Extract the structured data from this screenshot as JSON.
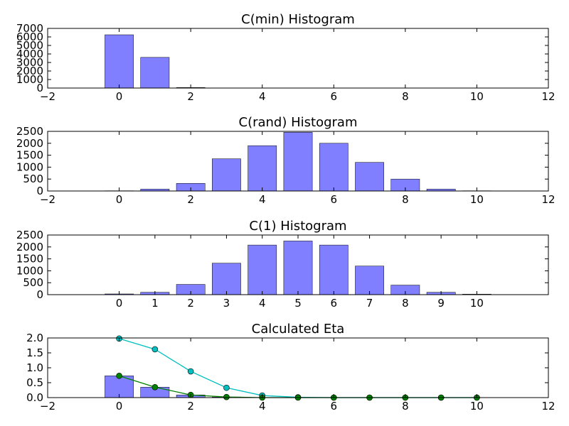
{
  "chart_data": [
    {
      "type": "bar",
      "title": "C(min) Histogram",
      "xlabel": "",
      "ylabel": "",
      "xlim": [
        -2,
        12
      ],
      "ylim": [
        0,
        7000
      ],
      "xticks": [
        "−2",
        "0",
        "2",
        "4",
        "6",
        "8",
        "10",
        "12"
      ],
      "xtick_values": [
        -2,
        0,
        2,
        4,
        6,
        8,
        10,
        12
      ],
      "yticks": [
        "0",
        "1000",
        "2000",
        "3000",
        "4000",
        "5000",
        "6000",
        "7000"
      ],
      "ytick_values": [
        0,
        1000,
        2000,
        3000,
        4000,
        5000,
        6000,
        7000
      ],
      "bar_color": "#7f7fff",
      "x": [
        0,
        1,
        2,
        3,
        4,
        5,
        6,
        7,
        8,
        9,
        10
      ],
      "values": [
        6250,
        3600,
        60,
        10,
        5,
        3,
        2,
        1,
        1,
        1,
        0
      ]
    },
    {
      "type": "bar",
      "title": "C(rand) Histogram",
      "xlabel": "",
      "ylabel": "",
      "xlim": [
        -2,
        12
      ],
      "ylim": [
        0,
        2500
      ],
      "xticks": [
        "−2",
        "0",
        "2",
        "4",
        "6",
        "8",
        "10",
        "12"
      ],
      "xtick_values": [
        -2,
        0,
        2,
        4,
        6,
        8,
        10,
        12
      ],
      "yticks": [
        "0",
        "500",
        "1000",
        "1500",
        "2000",
        "2500"
      ],
      "ytick_values": [
        0,
        500,
        1000,
        1500,
        2000,
        2500
      ],
      "bar_color": "#7f7fff",
      "x": [
        0,
        1,
        2,
        3,
        4,
        5,
        6,
        7,
        8,
        9,
        10
      ],
      "values": [
        10,
        80,
        320,
        1350,
        1900,
        2460,
        2000,
        1200,
        500,
        80,
        10
      ]
    },
    {
      "type": "bar",
      "title": "C(1) Histogram",
      "xlabel": "",
      "ylabel": "",
      "xlim": [
        -2,
        12
      ],
      "ylim": [
        0,
        2500
      ],
      "xticks": [
        "0",
        "1",
        "2",
        "3",
        "4",
        "5",
        "6",
        "7",
        "8",
        "9",
        "10"
      ],
      "xtick_values": [
        0,
        1,
        2,
        3,
        4,
        5,
        6,
        7,
        8,
        9,
        10
      ],
      "yticks": [
        "0",
        "500",
        "1000",
        "1500",
        "2000",
        "2500"
      ],
      "ytick_values": [
        0,
        500,
        1000,
        1500,
        2000,
        2500
      ],
      "bar_color": "#7f7fff",
      "x": [
        0,
        1,
        2,
        3,
        4,
        5,
        6,
        7,
        8,
        9,
        10
      ],
      "values": [
        30,
        100,
        430,
        1320,
        2080,
        2250,
        2080,
        1200,
        400,
        100,
        20
      ]
    },
    {
      "type": "bar",
      "title": "Calculated Eta",
      "xlabel": "",
      "ylabel": "",
      "xlim": [
        -2,
        12
      ],
      "ylim": [
        0,
        2.0
      ],
      "xticks": [
        "−2",
        "0",
        "2",
        "4",
        "6",
        "8",
        "10",
        "12"
      ],
      "xtick_values": [
        -2,
        0,
        2,
        4,
        6,
        8,
        10,
        12
      ],
      "yticks": [
        "0.0",
        "0.5",
        "1.0",
        "1.5",
        "2.0"
      ],
      "ytick_values": [
        0,
        0.5,
        1.0,
        1.5,
        2.0
      ],
      "bar_color": "#7f7fff",
      "x": [
        0,
        1,
        2,
        3,
        4,
        5,
        6,
        7,
        8,
        9,
        10
      ],
      "values": [
        0.73,
        0.35,
        0.09,
        0.02,
        0.0,
        0.0,
        0.0,
        0.0,
        0.0,
        0.0,
        0.0
      ],
      "series": [
        {
          "type": "line",
          "color": "#00bfbf",
          "x": [
            0,
            1,
            2,
            3,
            4,
            5,
            6,
            7,
            8,
            9,
            10
          ],
          "values": [
            1.98,
            1.62,
            0.88,
            0.33,
            0.07,
            0.01,
            0.0,
            0.0,
            0.0,
            0.0,
            0.0
          ]
        },
        {
          "type": "line",
          "color": "#008000",
          "x": [
            0,
            1,
            2,
            3,
            4,
            5,
            6,
            7,
            8,
            9,
            10
          ],
          "values": [
            0.73,
            0.35,
            0.09,
            0.02,
            0.0,
            0.0,
            0.0,
            0.0,
            0.0,
            0.0,
            0.0
          ]
        }
      ]
    }
  ]
}
